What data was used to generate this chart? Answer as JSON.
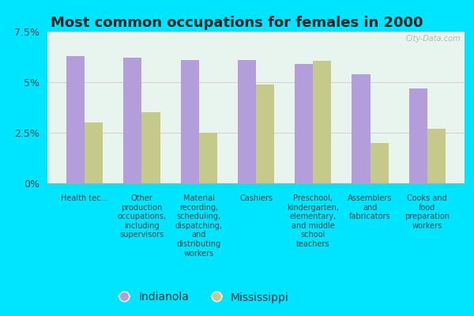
{
  "title": "Most common occupations for females in 2000",
  "categories": [
    "Health tec...",
    "Other\nproduction\noccupations,\nincluding\nsupervisors",
    "Material\nrecording,\nscheduling,\ndispatching,\nand\ndistributing\nworkers",
    "Cashiers",
    "Preschool,\nkindergarten,\nelementary,\nand middle\nschool\nteachers",
    "Assemblers\nand\nfabricators",
    "Cooks and\nfood\npreparation\nworkers"
  ],
  "indianola_values": [
    6.3,
    6.2,
    6.1,
    6.1,
    5.9,
    5.4,
    4.7
  ],
  "mississippi_values": [
    3.0,
    3.5,
    2.5,
    4.9,
    6.05,
    2.0,
    2.7
  ],
  "indianola_color": "#b39ddb",
  "mississippi_color": "#c5c98a",
  "background_outer": "#00e5ff",
  "background_inner_top": "#e8f5ee",
  "background_inner_bottom": "#f5fff8",
  "ylim": [
    0,
    7.5
  ],
  "yticks": [
    0,
    2.5,
    5.0,
    7.5
  ],
  "ytick_labels": [
    "0%",
    "2.5%",
    "5%",
    "7.5%"
  ],
  "legend_labels": [
    "Indianola",
    "Mississippi"
  ],
  "bar_width": 0.32,
  "watermark": "City-Data.com",
  "title_fontsize": 13,
  "axis_fontsize": 9,
  "legend_fontsize": 10,
  "tick_label_fontsize": 7
}
